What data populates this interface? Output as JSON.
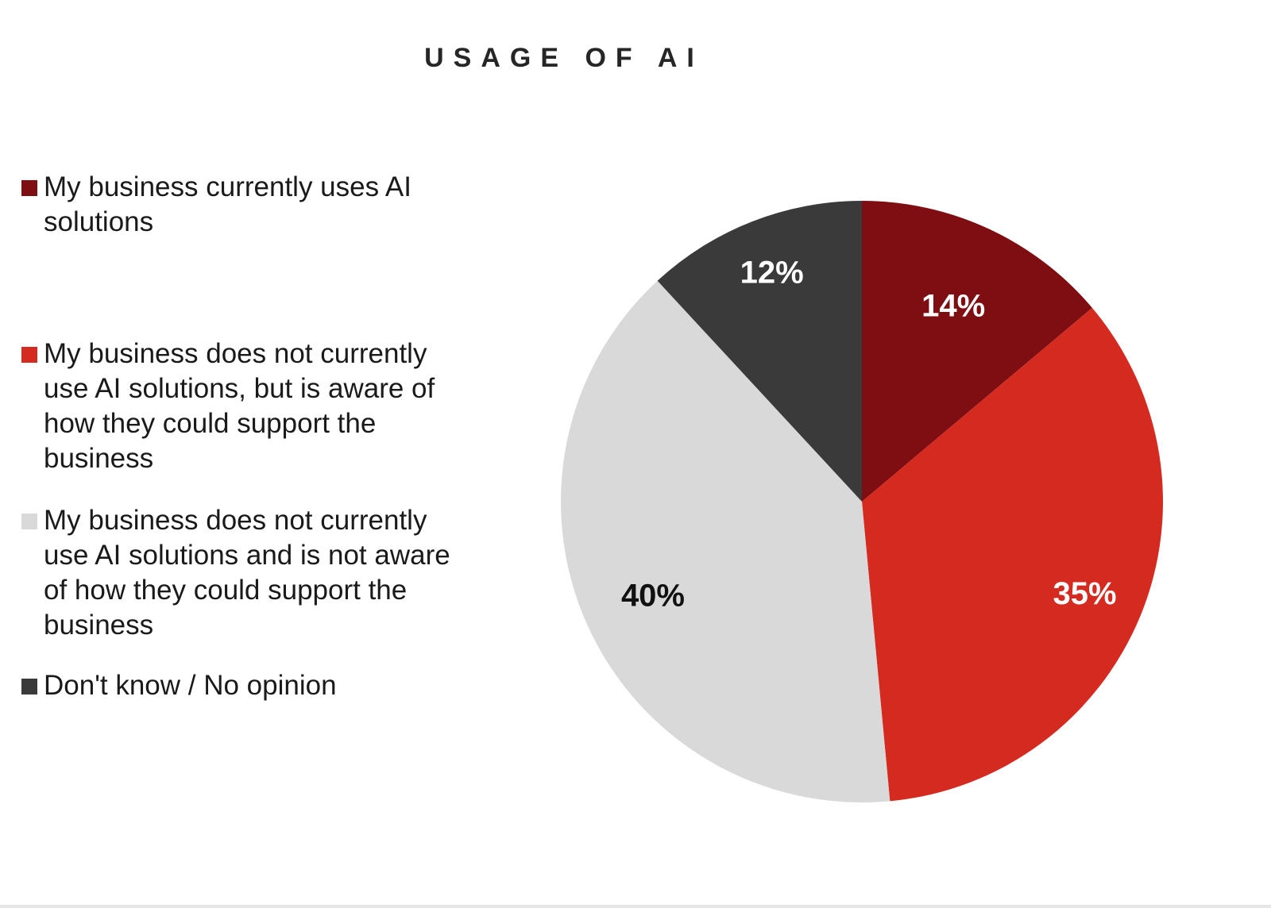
{
  "chart_data": {
    "type": "pie",
    "title": "USAGE OF AI",
    "categories": [
      "My business currently uses AI solutions",
      "My business does not currently use AI solutions, but is aware of how they could support the business",
      "My business does not currently use AI solutions and is not aware of how they could support the business",
      "Don't know / No opinion"
    ],
    "values": [
      14,
      35,
      40,
      12
    ],
    "labels": [
      "14%",
      "35%",
      "40%",
      "12%"
    ],
    "colors": [
      "#7f0e12",
      "#d42a1f",
      "#d9d9d9",
      "#3a3a3a"
    ],
    "label_colors": [
      "#ffffff",
      "#ffffff",
      "#111111",
      "#ffffff"
    ],
    "legend_position": "left",
    "start_angle": "12 o'clock",
    "direction": "clockwise"
  },
  "legend": {
    "items": [
      {
        "label": "My business currently uses AI solutions",
        "color": "#7f0e12"
      },
      {
        "label": "My business does not currently use AI solutions, but is aware of how they could support the business",
        "color": "#d42a1f"
      },
      {
        "label": "My business does not currently use AI solutions and is not aware of how they could support the business",
        "color": "#d9d9d9"
      },
      {
        "label": "Don't know / No opinion",
        "color": "#3a3a3a"
      }
    ]
  }
}
